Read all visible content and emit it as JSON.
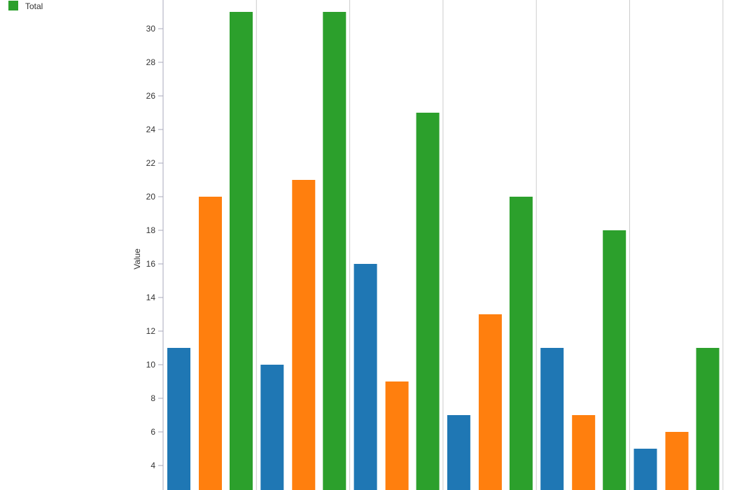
{
  "chart_data": {
    "type": "bar",
    "title": "",
    "xlabel": "",
    "ylabel": "Value",
    "ylim": [
      2.4,
      31.7
    ],
    "yticks": [
      4,
      6,
      8,
      10,
      12,
      14,
      16,
      18,
      20,
      22,
      24,
      26,
      28,
      30
    ],
    "grid": "vertical group separators",
    "legend": {
      "placement": "top-left",
      "visible_entries": [
        "Total"
      ]
    },
    "categories": [
      "",
      "",
      "",
      "",
      "",
      ""
    ],
    "series": [
      {
        "name": "",
        "color": "#1f77b4",
        "values": [
          11,
          10,
          16,
          7,
          11,
          5
        ]
      },
      {
        "name": "",
        "color": "#ff7f0e",
        "values": [
          20,
          21,
          9,
          13,
          7,
          6
        ]
      },
      {
        "name": "Total",
        "color": "#2ca02c",
        "values": [
          31,
          31,
          25,
          20,
          18,
          11
        ]
      }
    ]
  }
}
